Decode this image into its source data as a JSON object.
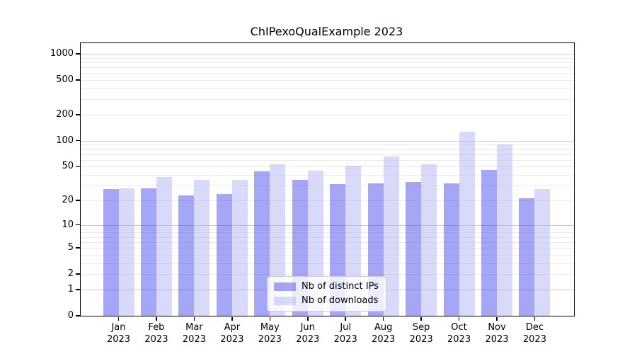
{
  "title": "ChIPexoQualExample 2023",
  "colors": {
    "axis": "#000000",
    "grid_major": "#c9c9c9",
    "grid_minor": "#ebebeb",
    "series_dark": "#a6a6f6",
    "series_light": "#d9d9f9",
    "legend_border": "#cccccc"
  },
  "chart_data": {
    "type": "bar",
    "title": "ChIPexoQualExample 2023",
    "categories": [
      "Jan",
      "Feb",
      "Mar",
      "Apr",
      "May",
      "Jun",
      "Jul",
      "Aug",
      "Sep",
      "Oct",
      "Nov",
      "Dec"
    ],
    "x_tick_year": "2023",
    "series": [
      {
        "name": "Nb of distinct IPs",
        "color": "rgba(77,77,237,0.5)",
        "color_hex": "#a6a6f6",
        "values": [
          27,
          28,
          23,
          24,
          44,
          35,
          31,
          32,
          33,
          32,
          46,
          21
        ]
      },
      {
        "name": "Nb of downloads",
        "color": "rgba(179,179,243,0.5)",
        "color_hex": "#d9d9f9",
        "values": [
          28,
          38,
          35,
          35,
          53,
          45,
          51,
          66,
          53,
          127,
          91,
          27
        ]
      }
    ],
    "y_ticks": [
      0,
      1,
      2,
      5,
      10,
      20,
      50,
      100,
      200,
      500,
      1000
    ],
    "y_major_gridlines": [
      1,
      10,
      100,
      1000
    ],
    "scale": "log1p",
    "ylim": [
      0,
      1320
    ],
    "xlabel": "",
    "ylabel": "",
    "grid": true,
    "legend_position": "inside lower-center"
  }
}
